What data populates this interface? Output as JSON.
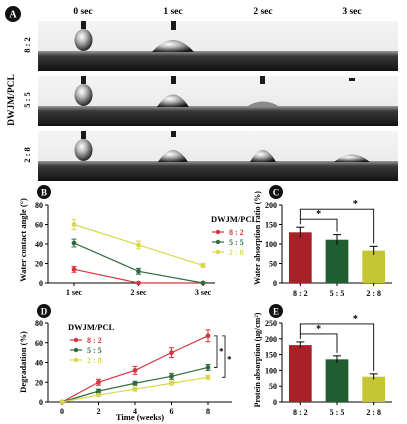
{
  "panelA": {
    "label": "A",
    "time_headers": [
      "0 sec",
      "1 sec",
      "2 sec",
      "3 sec"
    ],
    "group_title": "DWJM/PCL",
    "row_labels": [
      "8 : 2",
      "5 : 5",
      "2 : 8"
    ]
  },
  "chart_data": [
    {
      "panel": "B",
      "type": "line",
      "x": [
        "1 sec",
        "2 sec",
        "3 sec"
      ],
      "ylabel": "Water contact angle (°)",
      "ylim": [
        0,
        80
      ],
      "yticks": [
        0,
        20,
        40,
        60,
        80
      ],
      "legend_title": "DWJM/PCL",
      "legend_position": "right",
      "series": [
        {
          "name": "8 : 2",
          "color": "#d8343c",
          "values": [
            14,
            0,
            0
          ],
          "errors": [
            3,
            0,
            0
          ]
        },
        {
          "name": "5 : 5",
          "color": "#2f6b3f",
          "values": [
            41,
            12,
            0
          ],
          "errors": [
            4,
            3,
            0
          ]
        },
        {
          "name": "2 : 8",
          "color": "#d7d84a",
          "values": [
            60,
            39,
            18
          ],
          "errors": [
            5,
            4,
            2
          ]
        }
      ]
    },
    {
      "panel": "C",
      "type": "bar",
      "categories": [
        "8 : 2",
        "5 : 5",
        "2 : 8"
      ],
      "values": [
        130,
        111,
        83
      ],
      "errors": [
        13,
        13,
        11
      ],
      "colors": [
        "#a82128",
        "#1f5e30",
        "#c4c732"
      ],
      "ylabel": "Water absorption ratio (%)",
      "ylim": [
        0,
        200
      ],
      "yticks": [
        0,
        50,
        100,
        150,
        200
      ],
      "significance": [
        "*",
        "*"
      ]
    },
    {
      "panel": "D",
      "type": "line",
      "x": [
        0,
        2,
        4,
        6,
        8
      ],
      "xticks": [
        "0",
        "2",
        "4",
        "6",
        "8"
      ],
      "xlabel": "Time (weeks)",
      "ylabel": "Degradation (%)",
      "ylim": [
        0,
        80
      ],
      "yticks": [
        0,
        20,
        40,
        60,
        80
      ],
      "legend_title": "DWJM/PCL",
      "legend_position": "top-left",
      "significance": [
        "*",
        "*"
      ],
      "series": [
        {
          "name": "8 : 2",
          "color": "#d8343c",
          "values": [
            0,
            20,
            32,
            50,
            67
          ],
          "errors": [
            0,
            3,
            4,
            5,
            6
          ]
        },
        {
          "name": "5 : 5",
          "color": "#2f6b3f",
          "values": [
            0,
            11,
            19,
            26,
            35
          ],
          "errors": [
            0,
            2,
            2,
            3,
            3
          ]
        },
        {
          "name": "2 : 8",
          "color": "#d7d84a",
          "values": [
            0,
            7,
            13,
            19,
            25
          ],
          "errors": [
            0,
            1,
            2,
            2,
            2
          ]
        }
      ]
    },
    {
      "panel": "E",
      "type": "bar",
      "categories": [
        "8 : 2",
        "5 : 5",
        "2 : 8"
      ],
      "values": [
        180,
        135,
        80
      ],
      "errors": [
        10,
        11,
        9
      ],
      "colors": [
        "#a82128",
        "#1f5e30",
        "#c4c732"
      ],
      "ylabel": "Protein absorption (μg/cm²)",
      "ylim": [
        0,
        250
      ],
      "yticks": [
        0,
        50,
        100,
        150,
        200,
        250
      ],
      "significance": [
        "*",
        "*"
      ]
    }
  ]
}
